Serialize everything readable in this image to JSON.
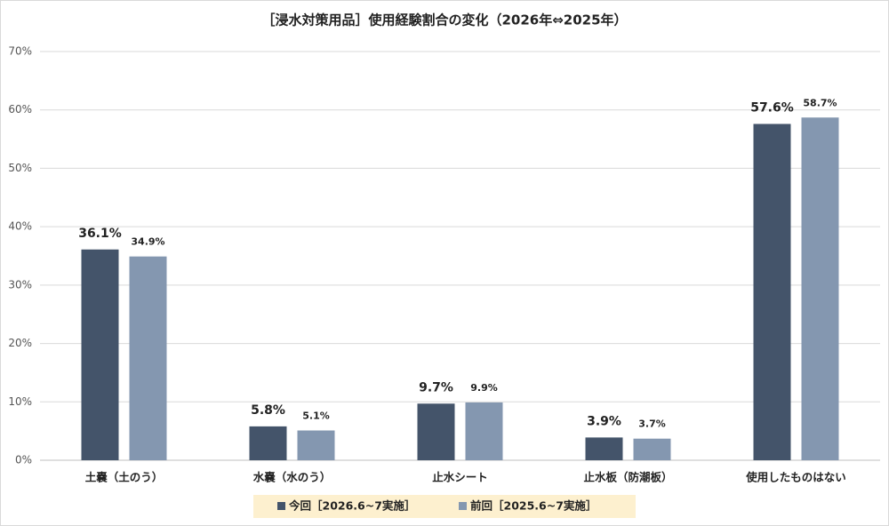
{
  "chart_data": {
    "type": "bar",
    "title": "［浸水対策用品］使用経験割合の変化（2026年⇔2025年）",
    "categories": [
      "土嚢（土のう）",
      "水嚢（水のう）",
      "止水シート",
      "止水板（防潮板）",
      "使用したものはない"
    ],
    "series": [
      {
        "name": "今回［2026.6~7実施］",
        "color": "#44546a",
        "values": [
          36.1,
          5.8,
          9.7,
          3.9,
          57.6
        ],
        "value_labels": [
          "36.1%",
          "5.8%",
          "9.7%",
          "3.9%",
          "57.6%"
        ]
      },
      {
        "name": "前回［2025.6~7実施］",
        "color": "#8497b0",
        "values": [
          34.9,
          5.1,
          9.9,
          3.7,
          58.7
        ],
        "value_labels": [
          "34.9%",
          "5.1%",
          "9.9%",
          "3.7%",
          "58.7%"
        ]
      }
    ],
    "ylim": [
      0,
      70
    ],
    "yticks": [
      {
        "value": 0,
        "label": "0%"
      },
      {
        "value": 10,
        "label": "10%"
      },
      {
        "value": 20,
        "label": "20%"
      },
      {
        "value": 30,
        "label": "30%"
      },
      {
        "value": 40,
        "label": "40%"
      },
      {
        "value": 50,
        "label": "50%"
      },
      {
        "value": 60,
        "label": "60%"
      },
      {
        "value": 70,
        "label": "70%"
      }
    ],
    "grid": true,
    "legend": "bottom"
  }
}
